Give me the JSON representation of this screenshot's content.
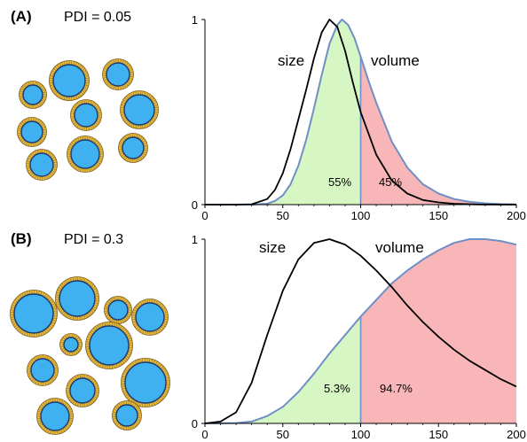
{
  "chart_data": [
    {
      "type": "area",
      "panel_label": "(A)",
      "pdi_text": "PDI = 0.05",
      "x_ticks": [
        "0",
        "50",
        "100",
        "150",
        "200"
      ],
      "y_ticks": [
        "0",
        "1"
      ],
      "xlim": [
        0,
        200
      ],
      "ylim": [
        0,
        1
      ],
      "grid": false,
      "series": [
        {
          "name": "size",
          "type": "line",
          "color": "#000000",
          "x": [
            0,
            20,
            30,
            40,
            45,
            50,
            55,
            60,
            65,
            70,
            75,
            80,
            85,
            90,
            95,
            100,
            110,
            120,
            130,
            140,
            150,
            160,
            175,
            190,
            200
          ],
          "y": [
            0,
            0,
            0.002,
            0.03,
            0.08,
            0.17,
            0.3,
            0.46,
            0.62,
            0.79,
            0.93,
            1.0,
            0.96,
            0.83,
            0.66,
            0.5,
            0.27,
            0.13,
            0.06,
            0.025,
            0.012,
            0.005,
            0.001,
            0,
            0
          ]
        },
        {
          "name": "volume",
          "type": "line",
          "color": "#6f8fc6",
          "x": [
            0,
            30,
            40,
            45,
            50,
            55,
            60,
            65,
            70,
            75,
            80,
            85,
            88,
            92,
            96,
            100,
            105,
            110,
            120,
            130,
            140,
            150,
            160,
            170,
            180,
            190,
            200
          ],
          "y": [
            0,
            0,
            0.005,
            0.02,
            0.05,
            0.11,
            0.21,
            0.35,
            0.52,
            0.7,
            0.87,
            0.97,
            1.0,
            0.97,
            0.9,
            0.8,
            0.67,
            0.55,
            0.34,
            0.2,
            0.11,
            0.06,
            0.03,
            0.015,
            0.007,
            0.003,
            0.001
          ]
        }
      ],
      "split_x": 100,
      "regions": [
        {
          "label": "55%",
          "from": 0,
          "to": 100,
          "color": "#d6f7c3"
        },
        {
          "label": "45%",
          "from": 100,
          "to": 200,
          "color": "#f8b6b8"
        }
      ],
      "annotations": [
        "size",
        "volume"
      ]
    },
    {
      "type": "area",
      "panel_label": "(B)",
      "pdi_text": "PDI = 0.3",
      "x_ticks": [
        "0",
        "50",
        "100",
        "150",
        "200"
      ],
      "y_ticks": [
        "0",
        "1"
      ],
      "xlim": [
        0,
        200
      ],
      "ylim": [
        0,
        1
      ],
      "grid": false,
      "series": [
        {
          "name": "size",
          "type": "line",
          "color": "#000000",
          "x": [
            0,
            10,
            20,
            30,
            40,
            50,
            60,
            70,
            80,
            90,
            100,
            110,
            120,
            130,
            140,
            150,
            160,
            170,
            180,
            190,
            200
          ],
          "y": [
            0,
            0.01,
            0.06,
            0.22,
            0.48,
            0.72,
            0.89,
            0.98,
            1.0,
            0.97,
            0.91,
            0.83,
            0.74,
            0.64,
            0.55,
            0.47,
            0.4,
            0.34,
            0.29,
            0.24,
            0.2
          ]
        },
        {
          "name": "volume",
          "type": "line",
          "color": "#6f8fc6",
          "x": [
            0,
            20,
            30,
            40,
            50,
            60,
            70,
            80,
            90,
            100,
            110,
            120,
            130,
            140,
            150,
            160,
            170,
            180,
            190,
            200
          ],
          "y": [
            0,
            0.002,
            0.01,
            0.04,
            0.09,
            0.17,
            0.27,
            0.38,
            0.48,
            0.58,
            0.67,
            0.76,
            0.83,
            0.89,
            0.94,
            0.98,
            1.0,
            1.0,
            0.99,
            0.97
          ]
        }
      ],
      "split_x": 100,
      "regions": [
        {
          "label": "5.3%",
          "from": 0,
          "to": 100,
          "color": "#d6f7c3"
        },
        {
          "label": "94.7%",
          "from": 100,
          "to": 200,
          "color": "#f8b6b8"
        }
      ],
      "annotations": [
        "size",
        "volume"
      ]
    }
  ],
  "illustrations": [
    {
      "panel": "(A)",
      "particle_count": 9,
      "particle_colors": {
        "core": "#3fb0f0",
        "shell": "#e6b83c"
      }
    },
    {
      "panel": "(B)",
      "particle_count": 11,
      "particle_colors": {
        "core": "#3fb0f0",
        "shell": "#e6b83c"
      }
    }
  ]
}
